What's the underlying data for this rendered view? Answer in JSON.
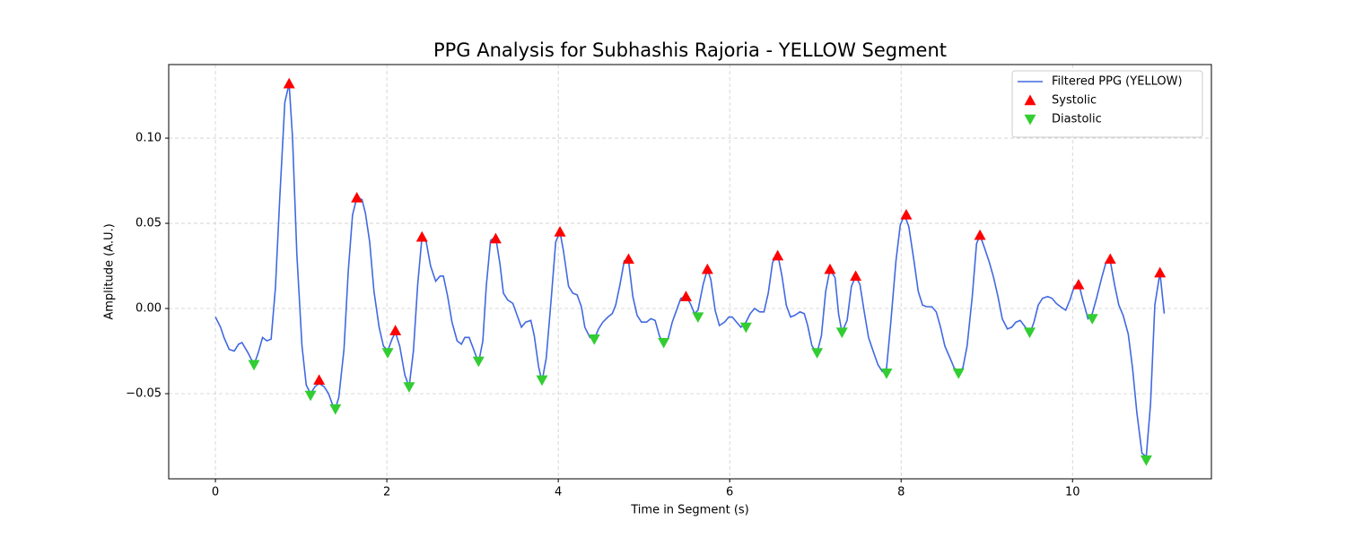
{
  "chart_data": {
    "type": "line",
    "title": "PPG Analysis for Subhashis Rajoria - YELLOW Segment",
    "xlabel": "Time in Segment (s)",
    "ylabel": "Amplitude (A.U.)",
    "xlim": [
      -0.545,
      11.62
    ],
    "ylim": [
      -0.1,
      0.1432
    ],
    "xticks": [
      0,
      2,
      4,
      6,
      8,
      10
    ],
    "yticks": [
      {
        "value": -0.05,
        "label": "−0.05"
      },
      {
        "value": 0,
        "label": "0.00"
      },
      0.05,
      {
        "value": 0.1,
        "label": "0.10"
      }
    ],
    "grid": true,
    "legend": "upper right",
    "series": [
      {
        "name": "Filtered PPG (YELLOW)",
        "color": "#4169e1",
        "marker": "line",
        "x": [
          0,
          0.06,
          0.1,
          0.16,
          0.22,
          0.27,
          0.31,
          0.38,
          0.45,
          0.5,
          0.55,
          0.6,
          0.65,
          0.7,
          0.75,
          0.81,
          0.86,
          0.9,
          0.95,
          1.01,
          1.06,
          1.11,
          1.16,
          1.21,
          1.27,
          1.32,
          1.37,
          1.4,
          1.44,
          1.5,
          1.55,
          1.6,
          1.65,
          1.71,
          1.75,
          1.8,
          1.85,
          1.91,
          1.96,
          2.01,
          2.06,
          2.1,
          2.15,
          2.21,
          2.26,
          2.31,
          2.36,
          2.41,
          2.46,
          2.51,
          2.57,
          2.62,
          2.66,
          2.71,
          2.76,
          2.82,
          2.87,
          2.91,
          2.96,
          3.02,
          3.07,
          3.12,
          3.16,
          3.21,
          3.27,
          3.32,
          3.36,
          3.41,
          3.47,
          3.52,
          3.57,
          3.62,
          3.68,
          3.72,
          3.77,
          3.81,
          3.86,
          3.92,
          3.97,
          4.02,
          4.06,
          4.12,
          4.17,
          4.22,
          4.27,
          4.31,
          4.37,
          4.42,
          4.47,
          4.52,
          4.58,
          4.63,
          4.67,
          4.72,
          4.77,
          4.82,
          4.87,
          4.92,
          4.97,
          5.03,
          5.08,
          5.13,
          5.18,
          5.23,
          5.28,
          5.33,
          5.38,
          5.43,
          5.49,
          5.54,
          5.59,
          5.63,
          5.69,
          5.74,
          5.78,
          5.83,
          5.88,
          5.94,
          5.99,
          6.03,
          6.08,
          6.13,
          6.19,
          6.24,
          6.29,
          6.35,
          6.4,
          6.45,
          6.5,
          6.56,
          6.61,
          6.66,
          6.71,
          6.76,
          6.82,
          6.87,
          6.91,
          6.96,
          7.02,
          7.07,
          7.12,
          7.17,
          7.23,
          7.27,
          7.31,
          7.37,
          7.42,
          7.47,
          7.52,
          7.57,
          7.62,
          7.68,
          7.73,
          7.78,
          7.83,
          7.88,
          7.94,
          7.99,
          8.04,
          8.09,
          8.15,
          8.2,
          8.25,
          8.3,
          8.36,
          8.41,
          8.46,
          8.51,
          8.57,
          8.62,
          8.67,
          8.72,
          8.77,
          8.83,
          8.88,
          8.92,
          8.97,
          9.03,
          9.08,
          9.13,
          9.18,
          9.24,
          9.29,
          9.34,
          9.39,
          9.45,
          9.5,
          9.55,
          9.6,
          9.65,
          9.71,
          9.76,
          9.81,
          9.86,
          9.92,
          9.97,
          10.02,
          10.07,
          10.12,
          10.18,
          10.23,
          10.28,
          10.34,
          10.39,
          10.44,
          10.49,
          10.54,
          10.59,
          10.65,
          10.7,
          10.75,
          10.81,
          10.86,
          10.91,
          10.96,
          11.02,
          11.07
        ],
        "values": [
          -0.005,
          -0.011,
          -0.017,
          -0.024,
          -0.025,
          -0.021,
          -0.02,
          -0.026,
          -0.033,
          -0.026,
          -0.017,
          -0.019,
          -0.018,
          0.012,
          0.064,
          0.121,
          0.132,
          0.1,
          0.032,
          -0.022,
          -0.045,
          -0.05,
          -0.046,
          -0.044,
          -0.046,
          -0.05,
          -0.057,
          -0.059,
          -0.052,
          -0.024,
          0.022,
          0.055,
          0.065,
          0.064,
          0.056,
          0.039,
          0.01,
          -0.011,
          -0.022,
          -0.025,
          -0.018,
          -0.014,
          -0.022,
          -0.039,
          -0.046,
          -0.025,
          0.014,
          0.042,
          0.039,
          0.025,
          0.016,
          0.019,
          0.019,
          0.007,
          -0.008,
          -0.019,
          -0.021,
          -0.017,
          -0.017,
          -0.025,
          -0.032,
          -0.019,
          0.013,
          0.04,
          0.042,
          0.026,
          0.009,
          0.005,
          0.003,
          -0.004,
          -0.011,
          -0.008,
          -0.007,
          -0.016,
          -0.034,
          -0.043,
          -0.029,
          0.007,
          0.039,
          0.045,
          0.034,
          0.013,
          0.009,
          0.008,
          0.001,
          -0.011,
          -0.017,
          -0.018,
          -0.012,
          -0.008,
          -0.005,
          -0.003,
          0.002,
          0.014,
          0.028,
          0.028,
          0.007,
          -0.004,
          -0.008,
          -0.008,
          -0.006,
          -0.007,
          -0.016,
          -0.021,
          -0.018,
          -0.008,
          -0.001,
          0.006,
          0.007,
          0.003,
          -0.003,
          -0.001,
          0.014,
          0.023,
          0.017,
          -0.001,
          -0.01,
          -0.008,
          -0.005,
          -0.005,
          -0.008,
          -0.011,
          -0.008,
          -0.003,
          0.0,
          -0.002,
          -0.002,
          0.009,
          0.027,
          0.032,
          0.019,
          0.002,
          -0.005,
          -0.004,
          -0.002,
          -0.003,
          -0.01,
          -0.022,
          -0.026,
          -0.016,
          0.01,
          0.023,
          0.018,
          -0.003,
          -0.014,
          -0.007,
          0.013,
          0.019,
          0.014,
          -0.002,
          -0.017,
          -0.026,
          -0.033,
          -0.037,
          -0.035,
          -0.008,
          0.028,
          0.049,
          0.055,
          0.048,
          0.028,
          0.01,
          0.002,
          0.001,
          0.001,
          -0.002,
          -0.011,
          -0.022,
          -0.029,
          -0.035,
          -0.037,
          -0.035,
          -0.022,
          0.007,
          0.038,
          0.043,
          0.036,
          0.027,
          0.018,
          0.007,
          -0.006,
          -0.012,
          -0.011,
          -0.008,
          -0.007,
          -0.011,
          -0.015,
          -0.008,
          0.002,
          0.006,
          0.007,
          0.006,
          0.003,
          0.001,
          -0.001,
          0.005,
          0.013,
          0.015,
          0.005,
          -0.006,
          -0.003,
          0.006,
          0.018,
          0.027,
          0.028,
          0.014,
          0.002,
          -0.004,
          -0.015,
          -0.035,
          -0.061,
          -0.085,
          -0.087,
          -0.056,
          0.002,
          0.021,
          -0.003
        ]
      },
      {
        "name": "Systolic",
        "color": "#ff0000",
        "marker": "triangle-up",
        "x": [
          0.86,
          1.21,
          1.65,
          2.1,
          2.41,
          3.27,
          4.02,
          4.82,
          5.49,
          5.74,
          6.56,
          7.17,
          7.47,
          8.06,
          8.92,
          10.07,
          10.44,
          11.02
        ],
        "values": [
          0.132,
          -0.042,
          0.065,
          -0.013,
          0.042,
          0.041,
          0.045,
          0.029,
          0.007,
          0.023,
          0.031,
          0.023,
          0.019,
          0.055,
          0.043,
          0.014,
          0.029,
          0.021
        ]
      },
      {
        "name": "Diastolic",
        "color": "#32cd32",
        "marker": "triangle-down",
        "x": [
          0.45,
          1.11,
          1.4,
          2.01,
          2.26,
          3.07,
          3.81,
          4.42,
          5.23,
          5.63,
          6.19,
          7.02,
          7.31,
          7.83,
          8.67,
          9.5,
          10.23,
          10.86
        ],
        "values": [
          -0.033,
          -0.051,
          -0.059,
          -0.026,
          -0.046,
          -0.031,
          -0.042,
          -0.018,
          -0.02,
          -0.005,
          -0.011,
          -0.026,
          -0.014,
          -0.038,
          -0.038,
          -0.014,
          -0.006,
          -0.089
        ]
      }
    ]
  }
}
